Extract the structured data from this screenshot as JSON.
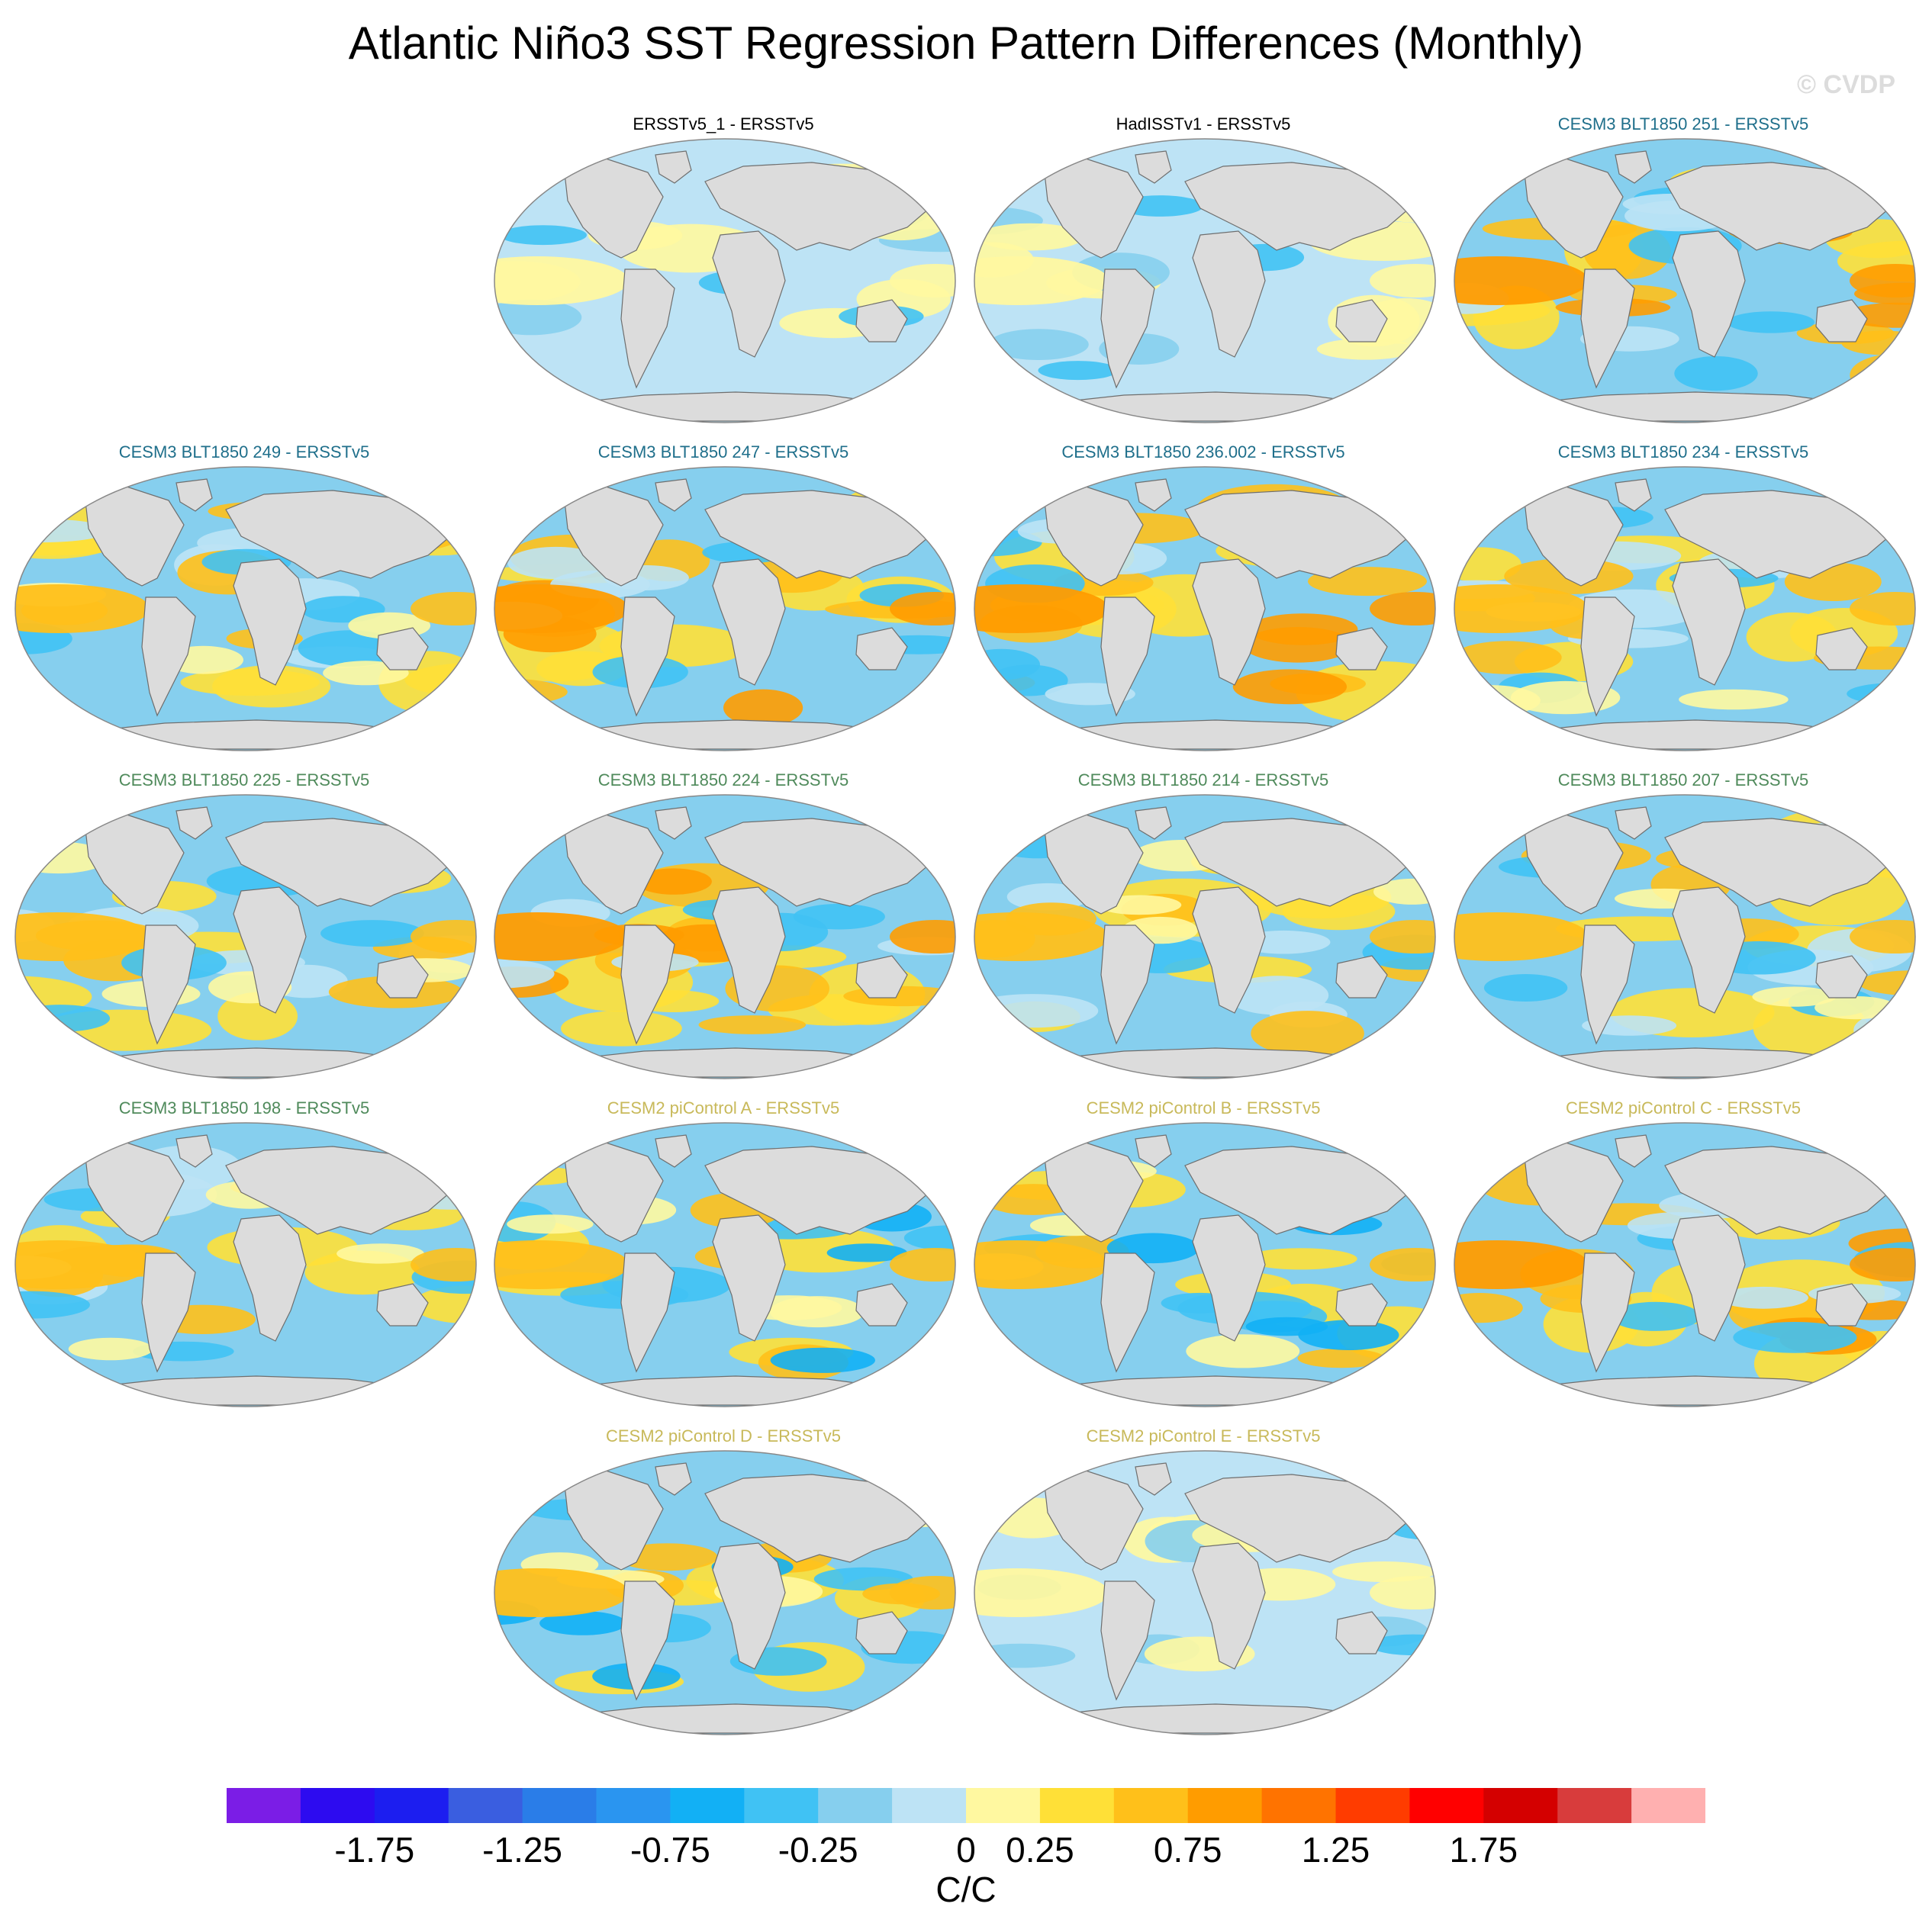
{
  "title": "Atlantic Niño3 SST Regression Pattern Differences (Monthly)",
  "watermark": "© CVDP",
  "panels": [
    {
      "label": "ERSSTv5_1 - ERSSTv5",
      "color": "#000000",
      "pattern": "weak"
    },
    {
      "label": "HadISSTv1 - ERSSTv5",
      "color": "#000000",
      "pattern": "weak"
    },
    {
      "label": "CESM3 BLT1850 251 - ERSSTv5",
      "color": "#1f6f8b",
      "pattern": "strong"
    },
    {
      "label": "CESM3 BLT1850 249 - ERSSTv5",
      "color": "#1f6f8b",
      "pattern": "moderate"
    },
    {
      "label": "CESM3 BLT1850 247 - ERSSTv5",
      "color": "#1f6f8b",
      "pattern": "strong"
    },
    {
      "label": "CESM3 BLT1850 236.002 - ERSSTv5",
      "color": "#1f6f8b",
      "pattern": "strong"
    },
    {
      "label": "CESM3 BLT1850 234 - ERSSTv5",
      "color": "#1f6f8b",
      "pattern": "moderate"
    },
    {
      "label": "CESM3 BLT1850 225 - ERSSTv5",
      "color": "#4f8a5b",
      "pattern": "moderate"
    },
    {
      "label": "CESM3 BLT1850 224 - ERSSTv5",
      "color": "#4f8a5b",
      "pattern": "strong"
    },
    {
      "label": "CESM3 BLT1850 214 - ERSSTv5",
      "color": "#4f8a5b",
      "pattern": "moderate"
    },
    {
      "label": "CESM3 BLT1850 207 - ERSSTv5",
      "color": "#4f8a5b",
      "pattern": "moderate"
    },
    {
      "label": "CESM3 BLT1850 198 - ERSSTv5",
      "color": "#4f8a5b",
      "pattern": "moderate"
    },
    {
      "label": "CESM2 piControl A - ERSSTv5",
      "color": "#c8b95a",
      "pattern": "mixed"
    },
    {
      "label": "CESM2 piControl B - ERSSTv5",
      "color": "#c8b95a",
      "pattern": "mixed"
    },
    {
      "label": "CESM2 piControl C - ERSSTv5",
      "color": "#c8b95a",
      "pattern": "strong"
    },
    {
      "label": "CESM2 piControl D - ERSSTv5",
      "color": "#c8b95a",
      "pattern": "mixed"
    },
    {
      "label": "CESM2 piControl E - ERSSTv5",
      "color": "#c8b95a",
      "pattern": "weak"
    }
  ],
  "colorbar": {
    "colors": [
      "#7b1de6",
      "#2d0bf0",
      "#1c1ef0",
      "#3a5ee0",
      "#2a7de8",
      "#2a95f0",
      "#12b0f5",
      "#40c2f4",
      "#86cfee",
      "#bde3f5",
      "#fff8a0",
      "#ffe037",
      "#ffc01a",
      "#ff9c00",
      "#ff7300",
      "#ff3c00",
      "#ff0000",
      "#d40000",
      "#d83c3c",
      "#ffb0b0"
    ],
    "tick_labels": [
      "-1.75",
      "-1.25",
      "-0.75",
      "-0.25",
      "0",
      "0.25",
      "0.75",
      "1.25",
      "1.75"
    ],
    "units": "C/C"
  }
}
